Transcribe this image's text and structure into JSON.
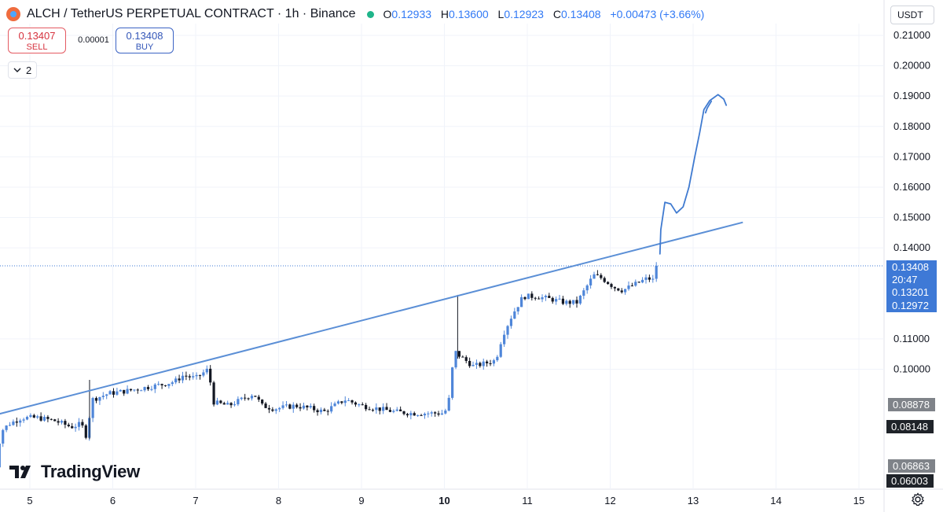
{
  "header": {
    "title": "ALCH / TetherUS PERPETUAL CONTRACT · 1h · Binance",
    "o_label": "O",
    "o_value": "0.12933",
    "h_label": "H",
    "h_value": "0.13600",
    "l_label": "L",
    "l_value": "0.12923",
    "c_label": "C",
    "c_value": "0.13408",
    "change": "+0.00473 (+3.66%)",
    "live_dot_color": "#1fb58a",
    "symbol_icon": "alchemy-logo-icon"
  },
  "trade": {
    "sell_price": "0.13407",
    "sell_label": "SELL",
    "spread": "0.00001",
    "buy_price": "0.13408",
    "buy_label": "BUY"
  },
  "indicators_toggle": {
    "count": "2",
    "icon": "chevron-down-icon"
  },
  "currency_select": "USDT",
  "branding": {
    "name": "TradingView"
  },
  "price_scale": {
    "last_price": "0.13408",
    "countdown": "20:47",
    "tags_blue": [
      "0.13201",
      "0.12972"
    ],
    "tags_grey": [
      "0.08878",
      "0.06863"
    ],
    "tags_dark": [
      "0.08148",
      "0.06003"
    ]
  },
  "colors": {
    "up": "#4f86d9",
    "down": "#131722",
    "trendline": "#5b8fd6",
    "drawing": "#3f7ad0",
    "accent": "#3179f5"
  },
  "chart_data": {
    "type": "candlestick",
    "interval": "1h",
    "xlabel": "",
    "ylabel": "",
    "grid": true,
    "ylim": [
      0.056,
      0.215
    ],
    "y_ticks": [
      "0.21000",
      "0.20000",
      "0.19000",
      "0.18000",
      "0.17000",
      "0.16000",
      "0.15000",
      "0.14000",
      "0.11000",
      "0.10000"
    ],
    "x_ticks": [
      {
        "label": "5",
        "day": 5
      },
      {
        "label": "6",
        "day": 6
      },
      {
        "label": "7",
        "day": 7
      },
      {
        "label": "8",
        "day": 8
      },
      {
        "label": "9",
        "day": 9
      },
      {
        "label": "10",
        "day": 10,
        "bold": true
      },
      {
        "label": "11",
        "day": 11
      },
      {
        "label": "12",
        "day": 12
      },
      {
        "label": "13",
        "day": 13
      },
      {
        "label": "14",
        "day": 14
      },
      {
        "label": "15",
        "day": 15
      }
    ],
    "xlim_days": [
      4.52,
      15.35
    ],
    "price_anchors": [
      [
        4.55,
        0.06
      ],
      [
        4.65,
        0.0795
      ],
      [
        4.75,
        0.082
      ],
      [
        4.9,
        0.084
      ],
      [
        5.1,
        0.084
      ],
      [
        5.3,
        0.083
      ],
      [
        5.5,
        0.081
      ],
      [
        5.62,
        0.082
      ],
      [
        5.68,
        0.078
      ],
      [
        5.75,
        0.09
      ],
      [
        5.95,
        0.092
      ],
      [
        6.2,
        0.093
      ],
      [
        6.4,
        0.094
      ],
      [
        6.6,
        0.095
      ],
      [
        6.75,
        0.096
      ],
      [
        6.85,
        0.098
      ],
      [
        7.0,
        0.097
      ],
      [
        7.15,
        0.1
      ],
      [
        7.22,
        0.089
      ],
      [
        7.4,
        0.088
      ],
      [
        7.55,
        0.09
      ],
      [
        7.7,
        0.092
      ],
      [
        7.8,
        0.088
      ],
      [
        7.95,
        0.087
      ],
      [
        8.2,
        0.088
      ],
      [
        8.4,
        0.087
      ],
      [
        8.55,
        0.086
      ],
      [
        8.8,
        0.09
      ],
      [
        9.0,
        0.088
      ],
      [
        9.2,
        0.087
      ],
      [
        9.4,
        0.086
      ],
      [
        9.6,
        0.0855
      ],
      [
        9.8,
        0.0855
      ],
      [
        10.0,
        0.0855
      ],
      [
        10.05,
        0.089
      ],
      [
        10.12,
        0.106
      ],
      [
        10.2,
        0.104
      ],
      [
        10.35,
        0.101
      ],
      [
        10.5,
        0.102
      ],
      [
        10.62,
        0.103
      ],
      [
        10.7,
        0.111
      ],
      [
        10.82,
        0.118
      ],
      [
        10.95,
        0.124
      ],
      [
        11.1,
        0.124
      ],
      [
        11.3,
        0.123
      ],
      [
        11.45,
        0.122
      ],
      [
        11.6,
        0.122
      ],
      [
        11.8,
        0.131
      ],
      [
        11.9,
        0.13
      ],
      [
        12.05,
        0.127
      ],
      [
        12.15,
        0.126
      ],
      [
        12.3,
        0.128
      ],
      [
        12.45,
        0.13
      ],
      [
        12.52,
        0.1293
      ],
      [
        12.57,
        0.13408
      ]
    ],
    "candle_step_days": 0.0417,
    "last_close": 0.13408,
    "trendline": [
      [
        4.52,
        0.0845
      ],
      [
        13.6,
        0.1484
      ]
    ],
    "projection": [
      [
        12.6,
        0.138
      ],
      [
        12.61,
        0.146
      ],
      [
        12.66,
        0.155
      ],
      [
        12.73,
        0.1545
      ],
      [
        12.8,
        0.1515
      ],
      [
        12.88,
        0.1535
      ],
      [
        12.95,
        0.16
      ],
      [
        13.02,
        0.17
      ],
      [
        13.08,
        0.178
      ],
      [
        13.13,
        0.1855
      ],
      [
        13.2,
        0.1885
      ],
      [
        13.3,
        0.1905
      ],
      [
        13.37,
        0.189
      ],
      [
        13.4,
        0.187
      ]
    ],
    "projection_hook": [
      [
        13.15,
        0.1845
      ],
      [
        13.17,
        0.186
      ],
      [
        13.22,
        0.1883
      ]
    ]
  }
}
